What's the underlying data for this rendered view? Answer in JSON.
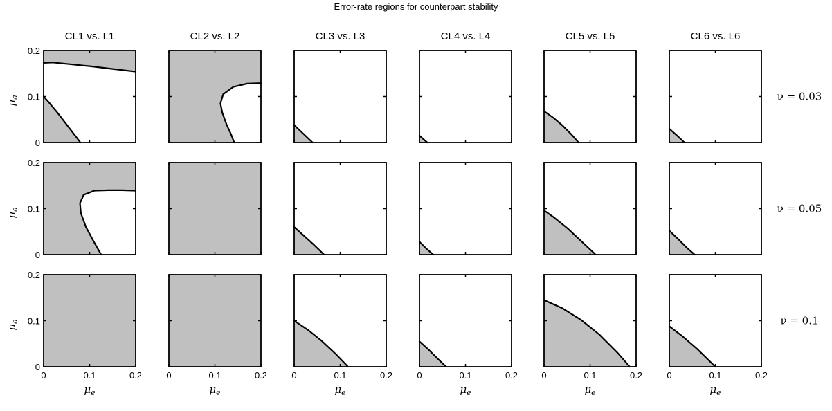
{
  "chart_data": {
    "type": "area",
    "title": "Error-rate regions for counterpart stability",
    "xlabel": "μe",
    "ylabel": "μa",
    "xlim": [
      0,
      0.2
    ],
    "ylim": [
      0,
      0.2
    ],
    "xticks": [
      "0",
      "0.1",
      "0.2"
    ],
    "yticks": [
      "0",
      "0.1",
      "0.2"
    ],
    "columns": [
      "CL1 vs. L1",
      "CL2 vs. L2",
      "CL3 vs. L3",
      "CL4 vs. L4",
      "CL5 vs. L5",
      "CL6 vs. L6"
    ],
    "rows": [
      "ν = 0.03",
      "ν = 0.05",
      "ν = 0.1"
    ],
    "shaded_color": "#c0c0c0",
    "boundary_color": "#000000",
    "panels": [
      [
        {
          "shading": "outside",
          "curves": [
            [
              [
                0,
                0.173
              ],
              [
                0.02,
                0.174
              ],
              [
                0.05,
                0.171
              ],
              [
                0.1,
                0.166
              ],
              [
                0.15,
                0.16
              ],
              [
                0.2,
                0.154
              ]
            ],
            [
              [
                0,
                0.1
              ],
              [
                0.01,
                0.089
              ],
              [
                0.03,
                0.065
              ],
              [
                0.05,
                0.039
              ],
              [
                0.07,
                0.013
              ],
              [
                0.08,
                0
              ]
            ]
          ]
        },
        {
          "shading": "outside",
          "curves": [
            [
              [
                0.2,
                0.129
              ],
              [
                0.17,
                0.128
              ],
              [
                0.14,
                0.121
              ],
              [
                0.118,
                0.105
              ],
              [
                0.112,
                0.085
              ],
              [
                0.116,
                0.065
              ],
              [
                0.125,
                0.04
              ],
              [
                0.135,
                0.018
              ],
              [
                0.142,
                0
              ]
            ]
          ]
        },
        {
          "shading": "below",
          "curves": [
            [
              [
                0,
                0.038
              ],
              [
                0.02,
                0.019
              ],
              [
                0.04,
                0
              ]
            ]
          ]
        },
        {
          "shading": "below",
          "curves": [
            [
              [
                0,
                0.015
              ],
              [
                0.017,
                0
              ]
            ]
          ]
        },
        {
          "shading": "below",
          "curves": [
            [
              [
                0,
                0.068
              ],
              [
                0.02,
                0.054
              ],
              [
                0.04,
                0.037
              ],
              [
                0.06,
                0.017
              ],
              [
                0.075,
                0
              ]
            ]
          ]
        },
        {
          "shading": "below",
          "curves": [
            [
              [
                0,
                0.03
              ],
              [
                0.017,
                0.015
              ],
              [
                0.033,
                0
              ]
            ]
          ]
        }
      ],
      [
        {
          "shading": "outside",
          "curves": [
            [
              [
                0.2,
                0.139
              ],
              [
                0.17,
                0.14
              ],
              [
                0.14,
                0.14
              ],
              [
                0.11,
                0.139
              ],
              [
                0.087,
                0.13
              ],
              [
                0.079,
                0.112
              ],
              [
                0.081,
                0.09
              ],
              [
                0.092,
                0.06
              ],
              [
                0.108,
                0.03
              ],
              [
                0.125,
                0
              ]
            ]
          ]
        },
        {
          "shading": "full",
          "curves": []
        },
        {
          "shading": "below",
          "curves": [
            [
              [
                0,
                0.06
              ],
              [
                0.02,
                0.042
              ],
              [
                0.04,
                0.024
              ],
              [
                0.065,
                0
              ]
            ]
          ]
        },
        {
          "shading": "below",
          "curves": [
            [
              [
                0,
                0.028
              ],
              [
                0.015,
                0.013
              ],
              [
                0.03,
                0
              ]
            ]
          ]
        },
        {
          "shading": "below",
          "curves": [
            [
              [
                0,
                0.096
              ],
              [
                0.02,
                0.082
              ],
              [
                0.05,
                0.058
              ],
              [
                0.08,
                0.03
              ],
              [
                0.112,
                0
              ]
            ]
          ]
        },
        {
          "shading": "below",
          "curves": [
            [
              [
                0,
                0.052
              ],
              [
                0.02,
                0.033
              ],
              [
                0.04,
                0.013
              ],
              [
                0.055,
                0
              ]
            ]
          ]
        }
      ],
      [
        {
          "shading": "full",
          "curves": []
        },
        {
          "shading": "full",
          "curves": []
        },
        {
          "shading": "below",
          "curves": [
            [
              [
                0,
                0.1
              ],
              [
                0.03,
                0.08
              ],
              [
                0.06,
                0.056
              ],
              [
                0.09,
                0.028
              ],
              [
                0.117,
                0
              ]
            ]
          ]
        },
        {
          "shading": "below",
          "curves": [
            [
              [
                0,
                0.055
              ],
              [
                0.02,
                0.037
              ],
              [
                0.04,
                0.017
              ],
              [
                0.058,
                0
              ]
            ]
          ]
        },
        {
          "shading": "below",
          "curves": [
            [
              [
                0,
                0.145
              ],
              [
                0.04,
                0.127
              ],
              [
                0.08,
                0.102
              ],
              [
                0.12,
                0.07
              ],
              [
                0.16,
                0.03
              ],
              [
                0.186,
                0
              ]
            ]
          ]
        },
        {
          "shading": "below",
          "curves": [
            [
              [
                0,
                0.088
              ],
              [
                0.03,
                0.065
              ],
              [
                0.06,
                0.039
              ],
              [
                0.1,
                0
              ]
            ]
          ]
        }
      ]
    ]
  }
}
